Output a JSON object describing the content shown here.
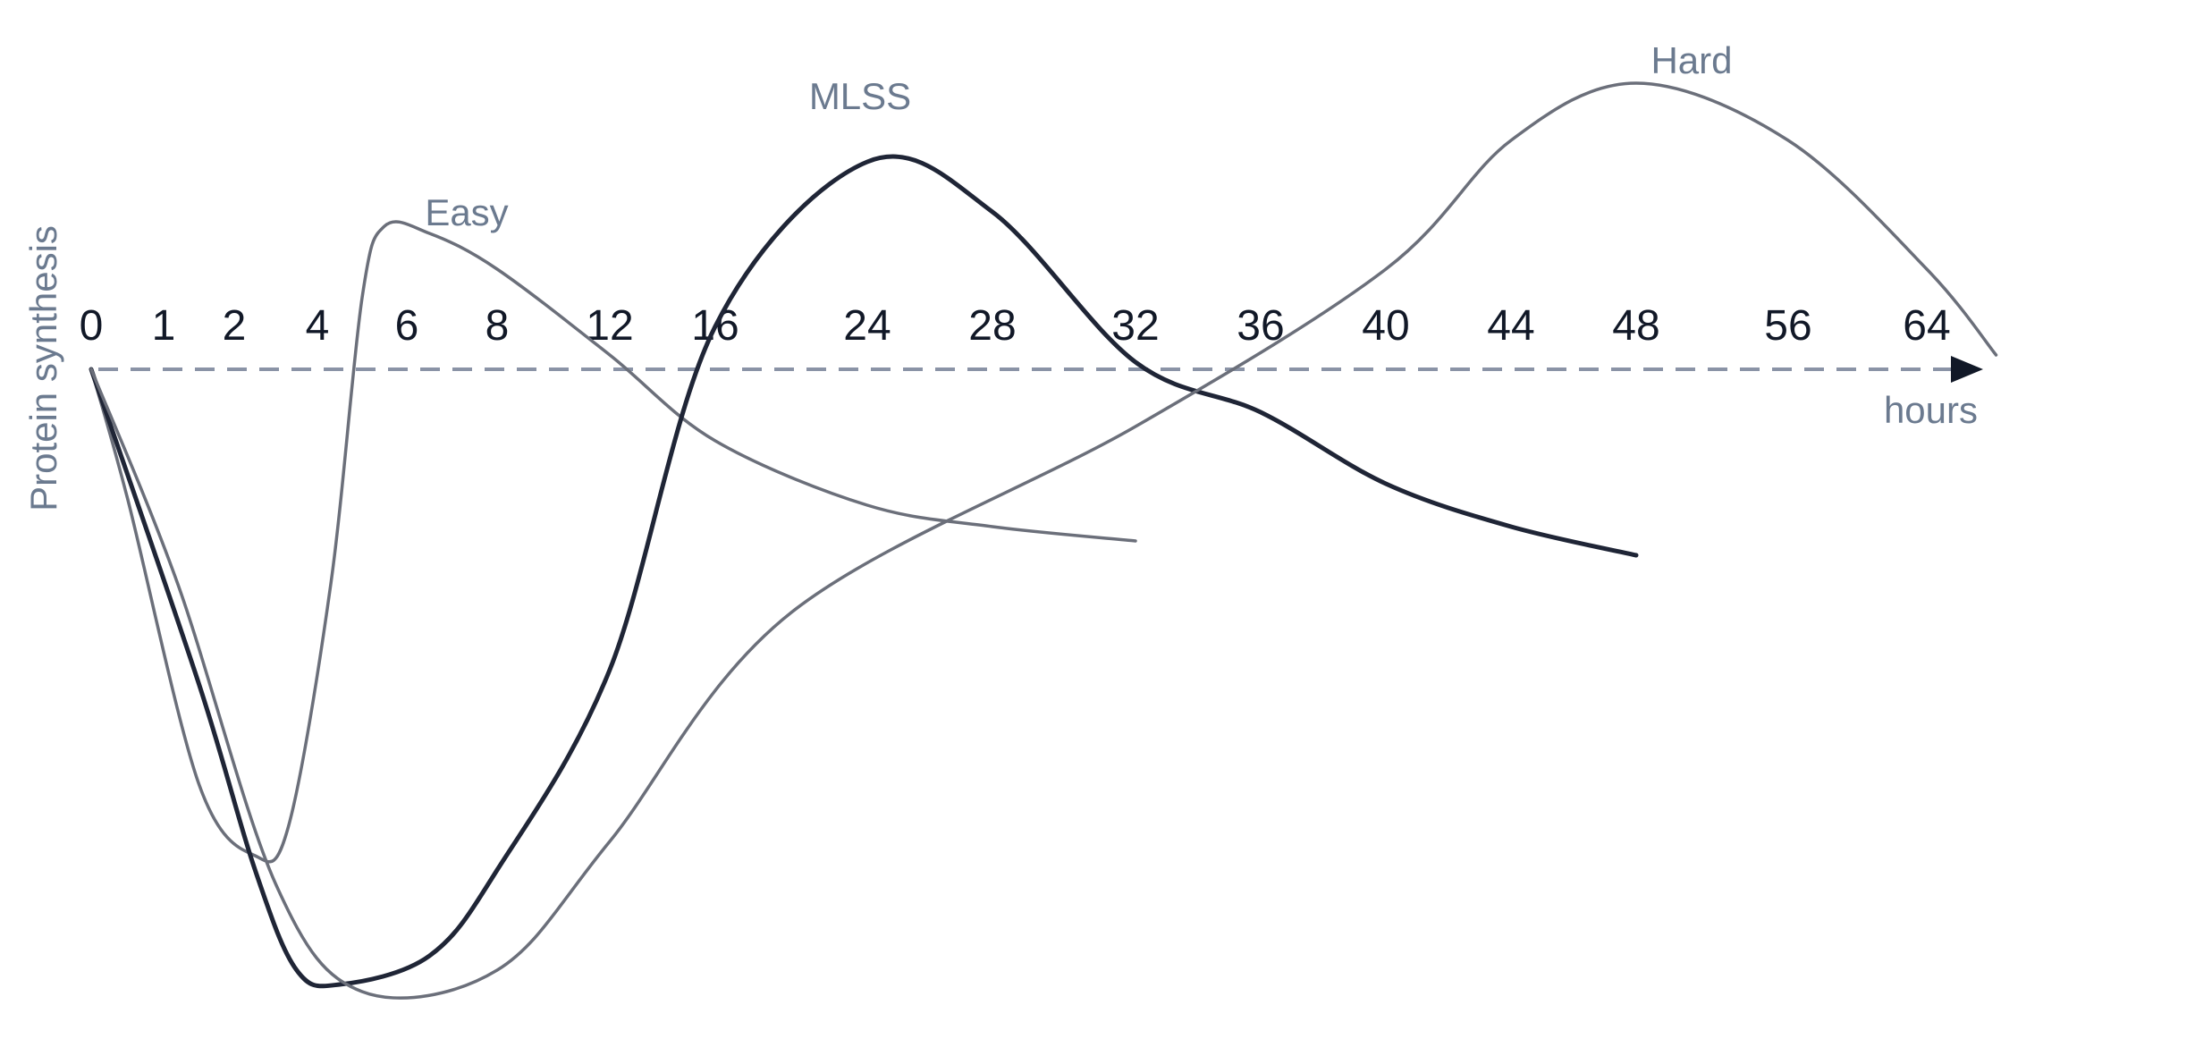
{
  "chart_data": {
    "type": "line",
    "xlabel": "hours",
    "ylabel": "Protein synthesis",
    "x_ticks": [
      "0",
      "1",
      "2",
      "4",
      "6",
      "8",
      "12",
      "16",
      "24",
      "28",
      "32",
      "36",
      "40",
      "44",
      "48",
      "56",
      "64"
    ],
    "grid": false,
    "legend": "none",
    "series": [
      {
        "name": "Easy",
        "color": "#6b6f7a",
        "points": [
          [
            0,
            0
          ],
          [
            0.5,
            -0.9
          ],
          [
            1.5,
            -2.9
          ],
          [
            2.5,
            -3.4
          ],
          [
            3.3,
            -3.2
          ],
          [
            4.3,
            -1.5
          ],
          [
            5.0,
            0.5
          ],
          [
            5.5,
            1.0
          ],
          [
            6.5,
            0.95
          ],
          [
            8,
            0.7
          ],
          [
            12,
            0.1
          ],
          [
            16,
            -0.5
          ],
          [
            24,
            -0.95
          ],
          [
            28,
            -1.1
          ],
          [
            32,
            -1.2
          ]
        ]
      },
      {
        "name": "MLSS",
        "color": "#1f2536",
        "points": [
          [
            0,
            0
          ],
          [
            1.5,
            -2.2
          ],
          [
            2.5,
            -3.5
          ],
          [
            3.5,
            -4.2
          ],
          [
            4.5,
            -4.3
          ],
          [
            6.5,
            -4.1
          ],
          [
            8,
            -3.5
          ],
          [
            12,
            -2.1
          ],
          [
            16,
            0.3
          ],
          [
            24,
            1.45
          ],
          [
            28,
            1.1
          ],
          [
            32,
            0.05
          ],
          [
            36,
            -0.3
          ],
          [
            40,
            -0.8
          ],
          [
            44,
            -1.1
          ],
          [
            48,
            -1.3
          ]
        ]
      },
      {
        "name": "Hard",
        "color": "#6b6f7a",
        "points": [
          [
            0,
            0
          ],
          [
            1.2,
            -1.5
          ],
          [
            3,
            -3.6
          ],
          [
            5,
            -4.35
          ],
          [
            8,
            -4.2
          ],
          [
            12,
            -3.3
          ],
          [
            20,
            -1.7
          ],
          [
            32,
            -0.4
          ],
          [
            40,
            0.7
          ],
          [
            44,
            1.6
          ],
          [
            48,
            2.0
          ],
          [
            56,
            1.6
          ],
          [
            64,
            0.7
          ],
          [
            68,
            0.1
          ]
        ]
      }
    ]
  }
}
